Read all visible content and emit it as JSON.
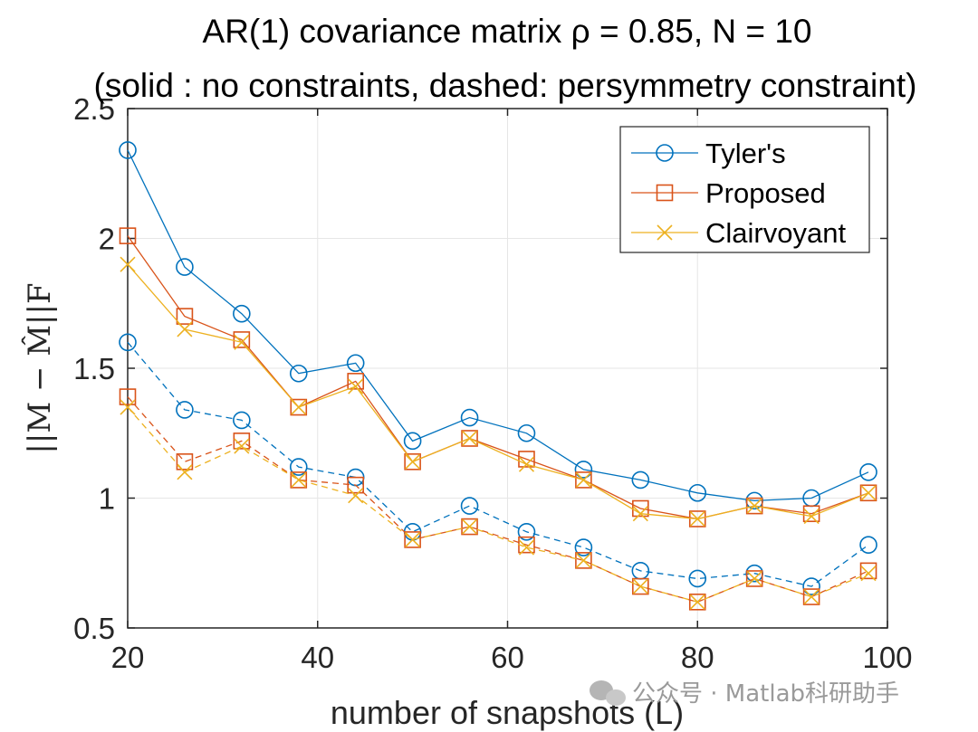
{
  "chart_data": {
    "type": "line",
    "title": "AR(1) covariance matrix ρ = 0.85, N = 10",
    "subtitle": "(solid : no constraints, dashed: persymmetry constraint)",
    "xlabel": "number of snapshots (L)",
    "ylabel": "||M − M̂||F",
    "xlim": [
      20,
      100
    ],
    "ylim": [
      0.5,
      2.5
    ],
    "xticks": [
      20,
      40,
      60,
      80,
      100
    ],
    "yticks": [
      0.5,
      1,
      1.5,
      2,
      2.5
    ],
    "xtick_labels": [
      "20",
      "40",
      "60",
      "80",
      "100"
    ],
    "ytick_labels": [
      "0.5",
      "1",
      "1.5",
      "2",
      "2.5"
    ],
    "grid": true,
    "legend_position": "top-right",
    "x": [
      20,
      26,
      32,
      38,
      44,
      50,
      56,
      62,
      68,
      74,
      80,
      86,
      92,
      98
    ],
    "series": [
      {
        "name": "Tyler's",
        "style": "solid",
        "marker": "circle",
        "color": "#0072BD",
        "values": [
          2.34,
          1.89,
          1.71,
          1.48,
          1.52,
          1.22,
          1.31,
          1.25,
          1.11,
          1.07,
          1.02,
          0.99,
          1.0,
          1.1
        ]
      },
      {
        "name": "Proposed",
        "style": "solid",
        "marker": "square",
        "color": "#D95319",
        "values": [
          2.01,
          1.7,
          1.61,
          1.35,
          1.45,
          1.14,
          1.23,
          1.15,
          1.07,
          0.96,
          0.92,
          0.97,
          0.94,
          1.02
        ]
      },
      {
        "name": "Clairvoyant",
        "style": "solid",
        "marker": "x",
        "color": "#EDB120",
        "values": [
          1.9,
          1.65,
          1.6,
          1.35,
          1.43,
          1.14,
          1.23,
          1.13,
          1.07,
          0.94,
          0.92,
          0.97,
          0.93,
          1.02
        ]
      },
      {
        "style": "dashed",
        "marker": "circle",
        "color": "#0072BD",
        "values": [
          1.6,
          1.34,
          1.3,
          1.12,
          1.08,
          0.87,
          0.97,
          0.87,
          0.81,
          0.72,
          0.69,
          0.71,
          0.66,
          0.82
        ]
      },
      {
        "style": "dashed",
        "marker": "square",
        "color": "#D95319",
        "values": [
          1.39,
          1.14,
          1.22,
          1.07,
          1.05,
          0.84,
          0.89,
          0.82,
          0.76,
          0.66,
          0.6,
          0.69,
          0.62,
          0.72
        ]
      },
      {
        "style": "dashed",
        "marker": "x",
        "color": "#EDB120",
        "values": [
          1.35,
          1.1,
          1.2,
          1.07,
          1.01,
          0.84,
          0.89,
          0.81,
          0.76,
          0.66,
          0.6,
          0.69,
          0.62,
          0.71
        ]
      }
    ],
    "legend": [
      "Tyler's",
      "Proposed",
      "Clairvoyant"
    ]
  },
  "watermark": "公众号 · Matlab科研助手",
  "icons": {
    "watermark_icon": "wechat-icon"
  }
}
